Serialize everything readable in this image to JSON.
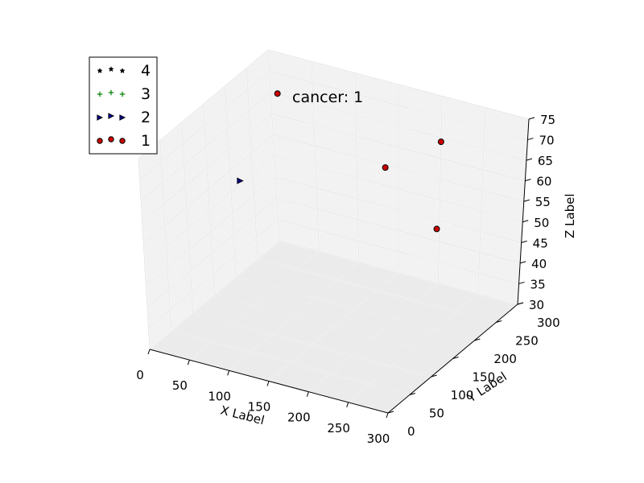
{
  "chart_data": {
    "type": "scatter",
    "title": "cancer: 1",
    "xlabel": "X Label",
    "ylabel": "Y Label",
    "zlabel": "Z Label",
    "xlim": [
      0,
      300
    ],
    "ylim": [
      0,
      300
    ],
    "zlim": [
      30,
      75
    ],
    "x_ticks": [
      "0",
      "50",
      "100",
      "150",
      "200",
      "250",
      "300"
    ],
    "y_ticks": [
      "0",
      "50",
      "100",
      "150",
      "200",
      "250",
      "300"
    ],
    "z_ticks": [
      "30",
      "35",
      "40",
      "45",
      "50",
      "55",
      "60",
      "65",
      "70",
      "75"
    ],
    "grid": true,
    "legend_position": "top-left",
    "series": [
      {
        "name": "4",
        "marker": "star",
        "color": "#000000",
        "points": []
      },
      {
        "name": "3",
        "marker": "plus",
        "color": "#008000",
        "points": []
      },
      {
        "name": "2",
        "marker": "triangle-right",
        "color": "#000080",
        "points": [
          {
            "x": 20,
            "y": 185,
            "z": 55
          }
        ]
      },
      {
        "name": "1",
        "marker": "circle",
        "color": "#cc0000",
        "points": [
          {
            "x": 40,
            "y": 240,
            "z": 72
          },
          {
            "x": 160,
            "y": 250,
            "z": 60
          },
          {
            "x": 200,
            "y": 300,
            "z": 64
          },
          {
            "x": 220,
            "y": 255,
            "z": 48
          }
        ]
      }
    ]
  }
}
